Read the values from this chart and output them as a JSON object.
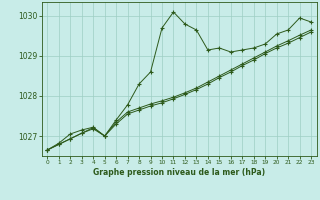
{
  "xlabel": "Graphe pression niveau de la mer (hPa)",
  "bg_color": "#c8ece8",
  "line_color": "#2d5a1b",
  "grid_color": "#9ecec4",
  "xlim": [
    -0.5,
    23.5
  ],
  "ylim": [
    1026.5,
    1030.35
  ],
  "yticks": [
    1027,
    1028,
    1029,
    1030
  ],
  "xticks": [
    0,
    1,
    2,
    3,
    4,
    5,
    6,
    7,
    8,
    9,
    10,
    11,
    12,
    13,
    14,
    15,
    16,
    17,
    18,
    19,
    20,
    21,
    22,
    23
  ],
  "series1_x": [
    0,
    1,
    2,
    3,
    4,
    5,
    6,
    7,
    8,
    9,
    10,
    11,
    12,
    13,
    14,
    15,
    16,
    17,
    18,
    19,
    20,
    21,
    22,
    23
  ],
  "series1_y": [
    1026.65,
    1026.82,
    1027.05,
    1027.15,
    1027.22,
    1027.0,
    1027.4,
    1027.78,
    1028.3,
    1028.6,
    1029.7,
    1030.1,
    1029.8,
    1029.65,
    1029.15,
    1029.2,
    1029.1,
    1029.15,
    1029.2,
    1029.3,
    1029.55,
    1029.65,
    1029.95,
    1029.85
  ],
  "series2_x": [
    0,
    1,
    2,
    3,
    4,
    5,
    6,
    7,
    8,
    9,
    10,
    11,
    12,
    13,
    14,
    15,
    16,
    17,
    18,
    19,
    20,
    21,
    22,
    23
  ],
  "series2_y": [
    1026.65,
    1026.79,
    1026.93,
    1027.07,
    1027.21,
    1027.0,
    1027.35,
    1027.6,
    1027.7,
    1027.8,
    1027.88,
    1027.97,
    1028.08,
    1028.2,
    1028.35,
    1028.5,
    1028.65,
    1028.8,
    1028.95,
    1029.1,
    1029.25,
    1029.38,
    1029.52,
    1029.65
  ],
  "series3_x": [
    0,
    1,
    2,
    3,
    4,
    5,
    6,
    7,
    8,
    9,
    10,
    11,
    12,
    13,
    14,
    15,
    16,
    17,
    18,
    19,
    20,
    21,
    22,
    23
  ],
  "series3_y": [
    1026.65,
    1026.79,
    1026.93,
    1027.07,
    1027.18,
    1027.0,
    1027.3,
    1027.55,
    1027.65,
    1027.75,
    1027.83,
    1027.93,
    1028.04,
    1028.16,
    1028.3,
    1028.46,
    1028.6,
    1028.76,
    1028.9,
    1029.06,
    1029.2,
    1029.32,
    1029.46,
    1029.6
  ]
}
